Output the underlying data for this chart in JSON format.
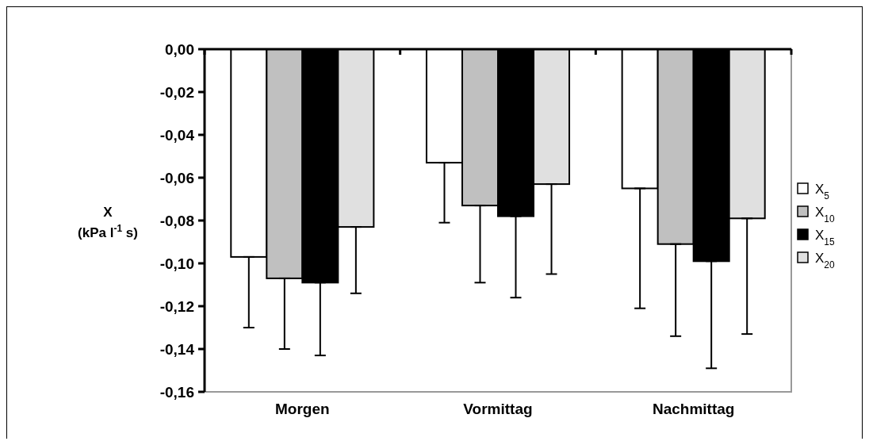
{
  "chart_data": {
    "type": "bar",
    "ylabel": "X\n(kPa l$^{-1}$ s)",
    "categories": [
      "Morgen",
      "Vormittag",
      "Nachmittag"
    ],
    "ylim": [
      -0.16,
      0
    ],
    "yticks": [
      {
        "value": 0,
        "label": "0,00"
      },
      {
        "value": -0.02,
        "label": "-0,02"
      },
      {
        "value": -0.04,
        "label": "-0,04"
      },
      {
        "value": -0.06,
        "label": "-0,06"
      },
      {
        "value": -0.08,
        "label": "-0,08"
      },
      {
        "value": -0.1,
        "label": "-0,10"
      },
      {
        "value": -0.12,
        "label": "-0,12"
      },
      {
        "value": -0.14,
        "label": "-0,14"
      },
      {
        "value": -0.16,
        "label": "-0,16"
      }
    ],
    "legend": "right",
    "grid": false,
    "series": [
      {
        "name": "X$_{5}$",
        "color": "#ffffff",
        "values": [
          -0.097,
          -0.053,
          -0.065
        ],
        "errors": [
          [
            -0.13,
            -0.097
          ],
          [
            -0.081,
            -0.053
          ],
          [
            -0.121,
            -0.065
          ]
        ]
      },
      {
        "name": "X$_{10}$",
        "color": "#c0c0c0",
        "values": [
          -0.107,
          -0.073,
          -0.091
        ],
        "errors": [
          [
            -0.14,
            -0.107
          ],
          [
            -0.109,
            -0.073
          ],
          [
            -0.134,
            -0.091
          ]
        ]
      },
      {
        "name": "X$_{15}$",
        "color": "#000000",
        "values": [
          -0.109,
          -0.078,
          -0.099
        ],
        "errors": [
          [
            -0.143,
            -0.109
          ],
          [
            -0.116,
            -0.078
          ],
          [
            -0.149,
            -0.099
          ]
        ]
      },
      {
        "name": "X$_{20}$",
        "color": "#e0e0e0",
        "values": [
          -0.083,
          -0.063,
          -0.079
        ],
        "errors": [
          [
            -0.114,
            -0.083
          ],
          [
            -0.105,
            -0.063
          ],
          [
            -0.133,
            -0.079
          ]
        ]
      }
    ]
  }
}
